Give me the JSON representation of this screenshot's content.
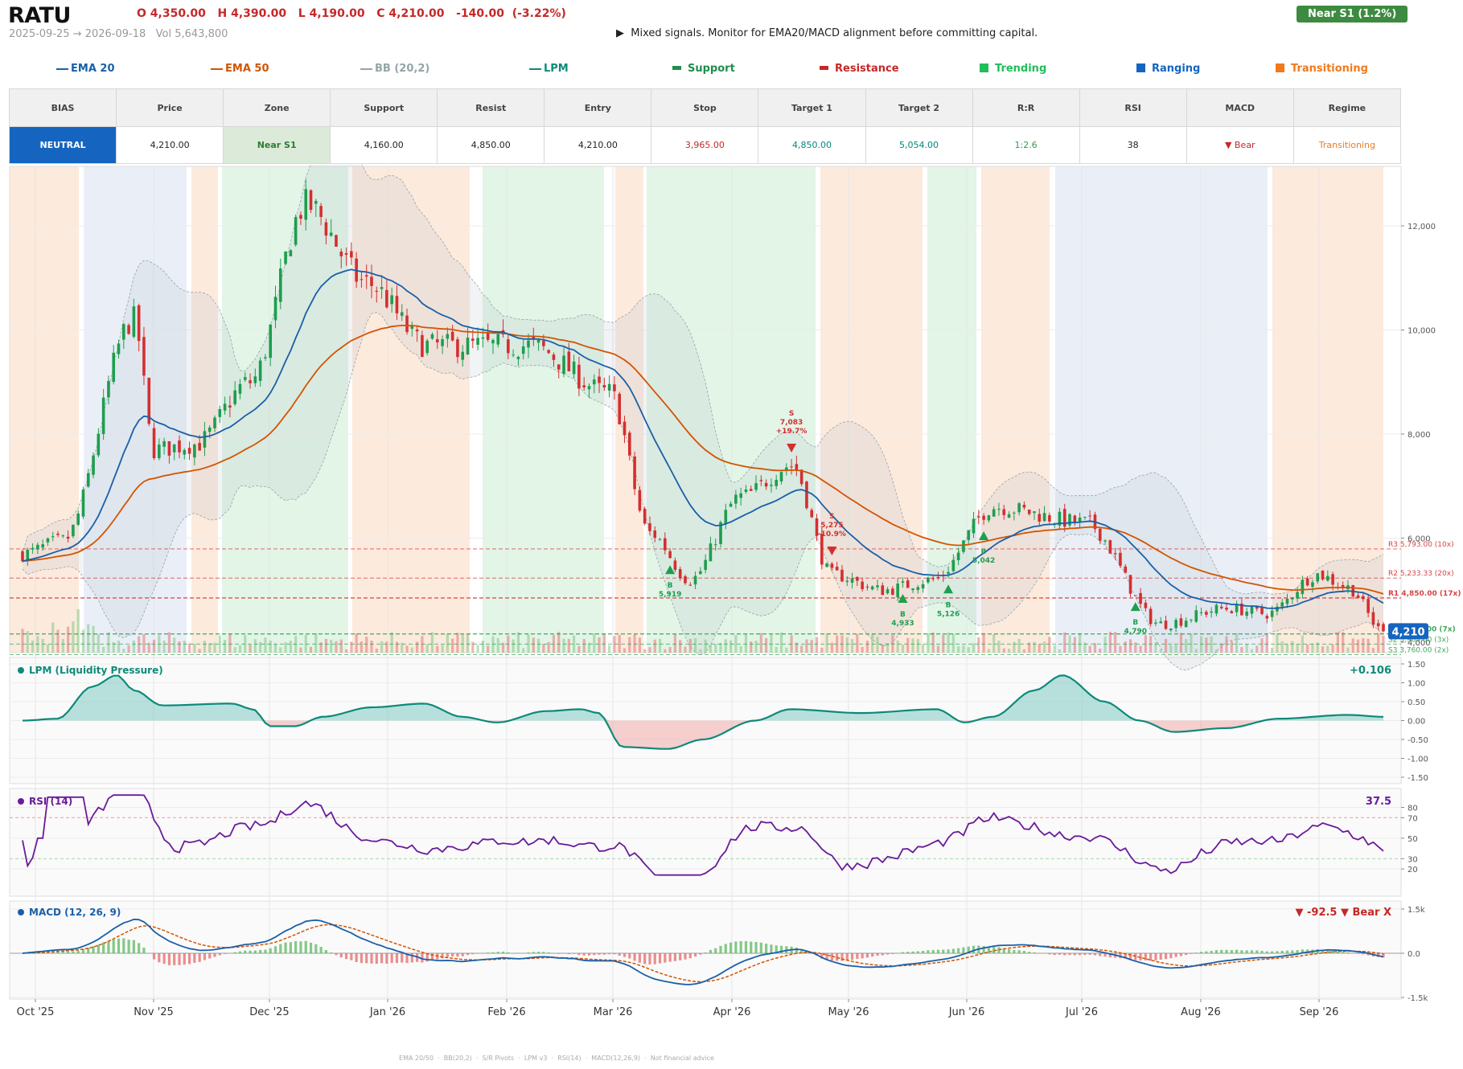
{
  "header": {
    "ticker": "RATU",
    "ohlc": "O 4,350.00   H 4,390.00   L 4,190.00   C 4,210.00   -140.00  (-3.22%)",
    "range": "2025-09-25 → 2026-09-18   Vol 5,643,800",
    "signal": "▶  Mixed signals. Monitor for EMA20/MACD alignment before committing capital.",
    "near_badge": "Near S1  (1.2%)"
  },
  "legend": [
    {
      "label": "EMA 20",
      "color": "#1a5fa8",
      "kind": "line",
      "left": 70
    },
    {
      "label": "EMA 50",
      "color": "#d35400",
      "kind": "line",
      "left": 262
    },
    {
      "label": "BB (20,2)",
      "color": "#95a5a6",
      "kind": "line",
      "left": 448
    },
    {
      "label": "LPM",
      "color": "#0e8a78",
      "kind": "line",
      "left": 658
    },
    {
      "label": "Support",
      "color": "#1e8e4e",
      "kind": "dash",
      "left": 836
    },
    {
      "label": "Resistance",
      "color": "#c62828",
      "kind": "dash",
      "left": 1019
    },
    {
      "label": "Trending",
      "color": "#1fbf5b",
      "kind": "box",
      "left": 1218
    },
    {
      "label": "Ranging",
      "color": "#1565c0",
      "kind": "box",
      "left": 1413
    },
    {
      "label": "Transitioning",
      "color": "#f07a1e",
      "kind": "box",
      "left": 1586
    }
  ],
  "summary": {
    "headers": [
      "BIAS",
      "Price",
      "Zone",
      "Support",
      "Resist",
      "Entry",
      "Stop",
      "Target 1",
      "Target 2",
      "R:R",
      "RSI",
      "MACD",
      "Regime"
    ],
    "bias": "NEUTRAL",
    "price": "4,210.00",
    "zone": "Near S1",
    "support": "4,160.00",
    "resist": "4,850.00",
    "entry": "4,210.00",
    "stop": "3,965.00",
    "target1": "4,850.00",
    "target2": "5,054.00",
    "rr": "1:2.6",
    "rsi": "38",
    "macd": "▼ Bear",
    "regime": "Transitioning"
  },
  "chart_data": {
    "type": "candlestick",
    "x_labels": [
      "Oct '25",
      "Nov '25",
      "Dec '25",
      "Jan '26",
      "Feb '26",
      "Mar '26",
      "Apr '26",
      "May '26",
      "Jun '26",
      "Jul '26",
      "Aug '26",
      "Sep '26"
    ],
    "price": {
      "yticks": [
        "12,000",
        "10,000",
        "8,000",
        "6,000",
        "4,000"
      ],
      "last_price": "4,210",
      "levels": [
        {
          "label": "R3 5,793.00 (10x)",
          "value": 5793,
          "type": "resistance"
        },
        {
          "label": "R2 5,233.33 (20x)",
          "value": 5233,
          "type": "resistance"
        },
        {
          "label": "R1 4,850.00 (17x)",
          "value": 4850,
          "type": "resistance"
        },
        {
          "label": "S1 4,160.00 (7x)",
          "value": 4160,
          "type": "support"
        },
        {
          "label": "S2 3,965.00 (3x)",
          "value": 3965,
          "type": "support"
        },
        {
          "label": "S3 3,760.00 (2x)",
          "value": 3760,
          "type": "support"
        }
      ],
      "signals": [
        {
          "kind": "B",
          "price": "5,919",
          "date": "Jan '26"
        },
        {
          "kind": "S",
          "price": "7,083",
          "pct": "+19.7%",
          "date": "Mar '26"
        },
        {
          "kind": "S",
          "price": "5,275",
          "pct": "-10.9%",
          "date": "Mar '26"
        },
        {
          "kind": "B",
          "price": "4,933",
          "date": "Mar '26"
        },
        {
          "kind": "B",
          "price": "5,126",
          "date": "Apr '26"
        },
        {
          "kind": "B",
          "price": "5,042",
          "date": "Apr '26"
        },
        {
          "kind": "B",
          "price": "4,790",
          "date": "Jun '26"
        }
      ]
    },
    "lpm": {
      "title": "LPM (Liquidity Pressure)",
      "value": "+0.106",
      "yticks": [
        "1.50",
        "1.00",
        "0.50",
        "0.00",
        "-0.50",
        "-1.00",
        "-1.50"
      ]
    },
    "rsi": {
      "title": "RSI (14)",
      "value": "37.5",
      "yticks": [
        "80",
        "70",
        "50",
        "30",
        "20"
      ]
    },
    "macd": {
      "title": "MACD (12, 26, 9)",
      "value": "▼ -92.5 ▼ Bear X",
      "yticks": [
        "1.5k",
        "0.0",
        "-1.5k"
      ]
    }
  },
  "footer": "EMA 20/50  ·  BB(20,2)  ·  S/R Pivots  ·  LPM v3  ·  RSI(14)  ·  MACD(12,26,9)  ·  Not financial advice"
}
